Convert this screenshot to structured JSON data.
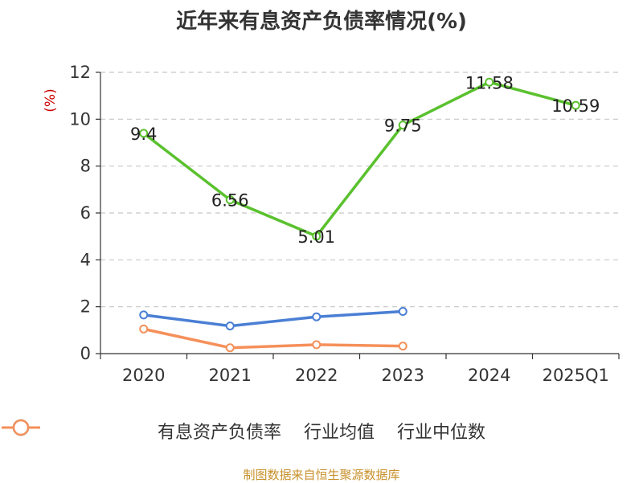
{
  "chart_data": {
    "type": "line",
    "title": "近年来有息资产负债率情况(%)",
    "ylabel": "(%)",
    "xlabel": "",
    "ylim": [
      0,
      12
    ],
    "yticks": [
      0,
      2,
      4,
      6,
      8,
      10,
      12
    ],
    "grid": true,
    "legend_position": "bottom",
    "categories": [
      "2020",
      "2021",
      "2022",
      "2023",
      "2024",
      "2025Q1"
    ],
    "series": [
      {
        "name": "有息资产负债率",
        "color": "#5ac12e",
        "values": [
          9.4,
          6.56,
          5.01,
          9.75,
          11.58,
          10.59
        ],
        "labels": [
          "9.4",
          "6.56",
          "5.01",
          "9.75",
          "11.58",
          "10.59"
        ]
      },
      {
        "name": "行业均值",
        "color": "#4a7fd4",
        "values": [
          1.65,
          1.18,
          1.57,
          1.8,
          null,
          null
        ]
      },
      {
        "name": "行业中位数",
        "color": "#f5905a",
        "values": [
          1.05,
          0.25,
          0.38,
          0.32,
          null,
          null
        ]
      }
    ]
  },
  "source_text": "制图数据来自恒生聚源数据库"
}
